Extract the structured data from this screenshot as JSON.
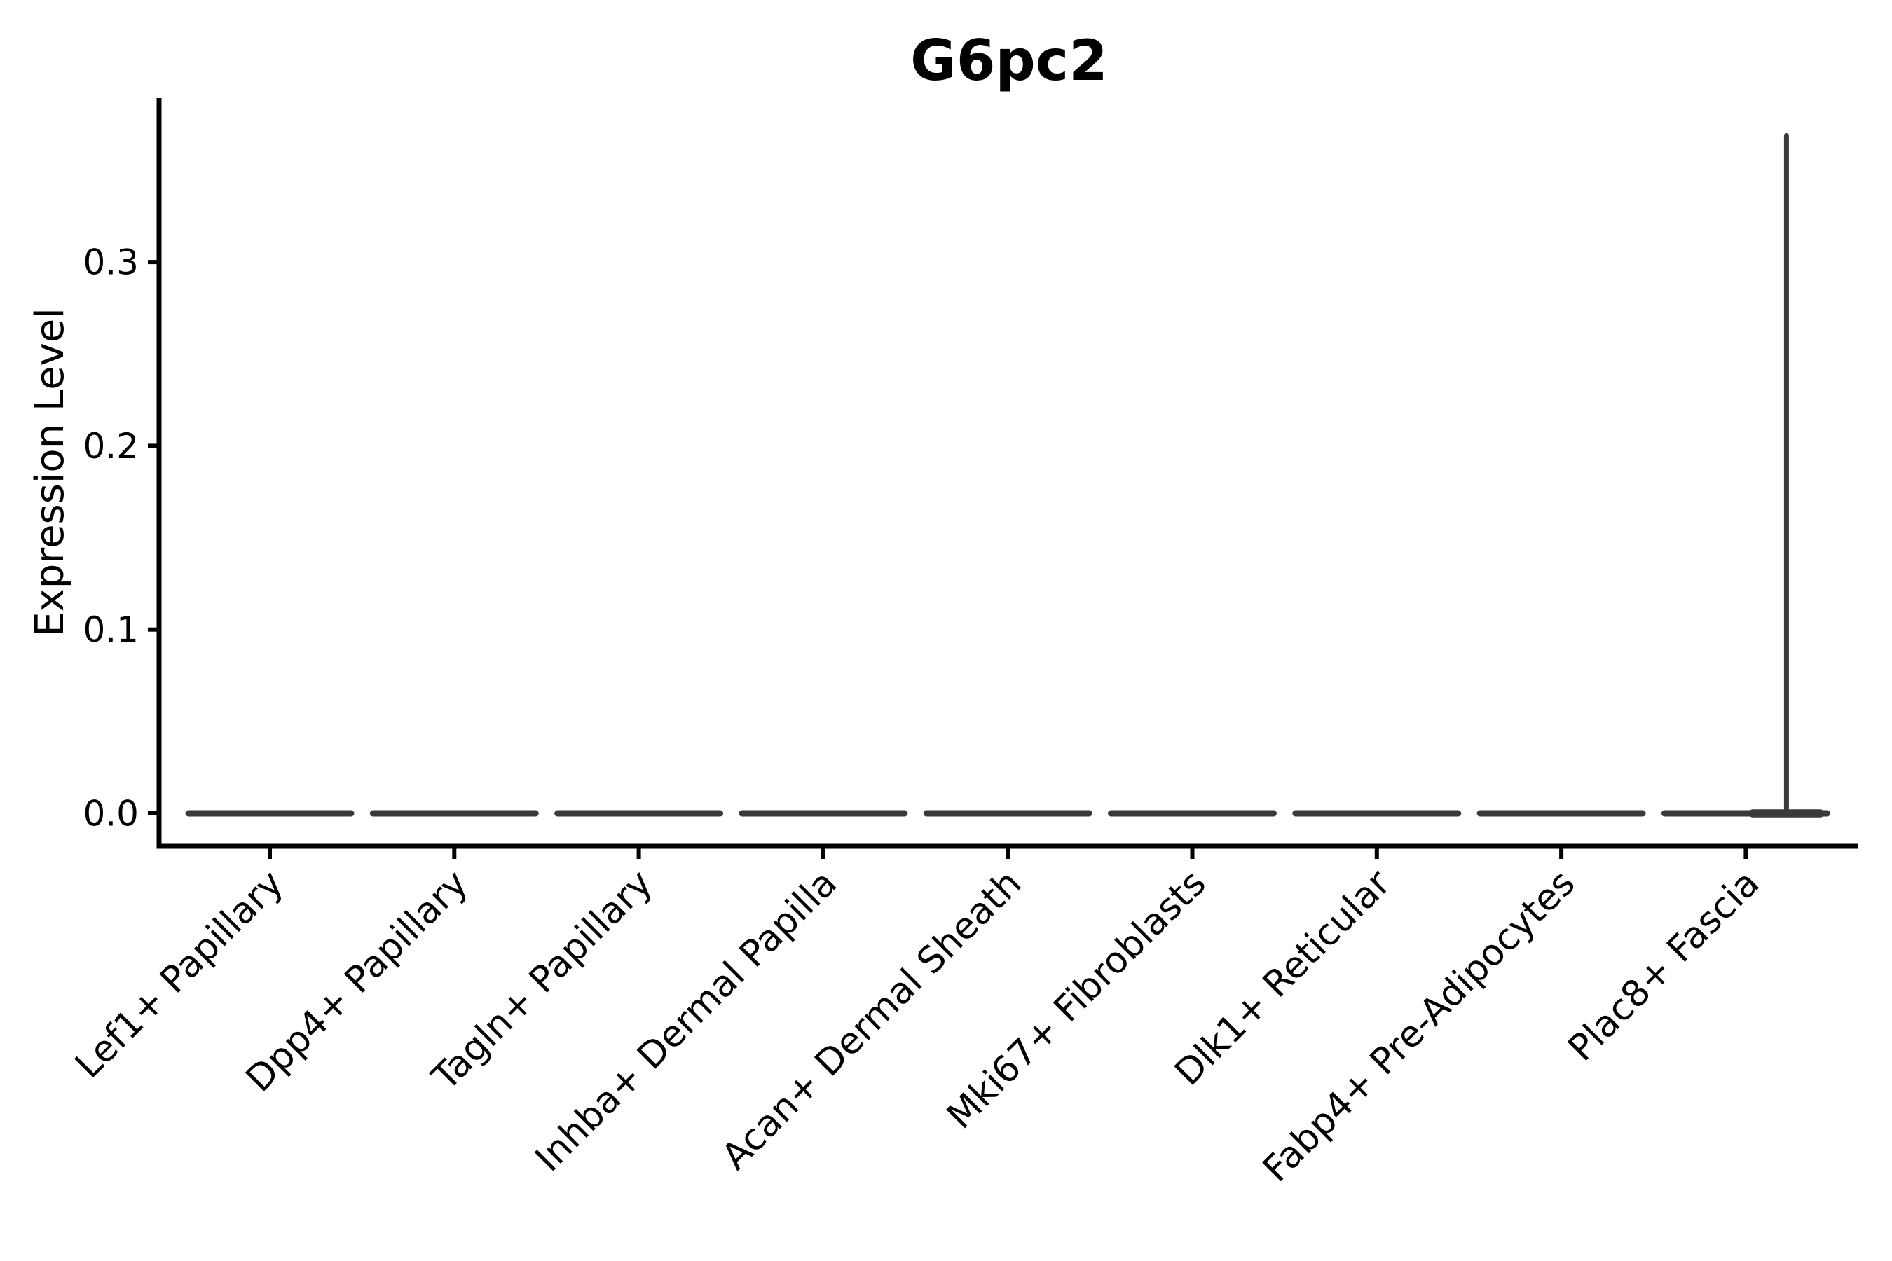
{
  "figure": {
    "title": "G6pc2",
    "y_axis_label": "Expression Level"
  },
  "chart_data": {
    "type": "violin",
    "title": "G6pc2",
    "xlabel": "",
    "ylabel": "Expression Level",
    "categories": [
      "Lef1+ Papillary",
      "Dpp4+ Papillary",
      "Tagln+ Papillary",
      "Inhba+ Dermal Papilla",
      "Acan+ Dermal Sheath",
      "Mki67+ Fibroblasts",
      "Dlk1+ Reticular",
      "Fabp4+ Pre-Adipocytes",
      "Plac8+ Fascia"
    ],
    "violins": [
      {
        "category": "Lef1+ Papillary",
        "expression_min": 0.0,
        "expression_max": 0.0,
        "shape": "flat-at-zero"
      },
      {
        "category": "Dpp4+ Papillary",
        "expression_min": 0.0,
        "expression_max": 0.0,
        "shape": "flat-at-zero"
      },
      {
        "category": "Tagln+ Papillary",
        "expression_min": 0.0,
        "expression_max": 0.0,
        "shape": "flat-at-zero"
      },
      {
        "category": "Inhba+ Dermal Papilla",
        "expression_min": 0.0,
        "expression_max": 0.0,
        "shape": "flat-at-zero"
      },
      {
        "category": "Acan+ Dermal Sheath",
        "expression_min": 0.0,
        "expression_max": 0.0,
        "shape": "flat-at-zero"
      },
      {
        "category": "Mki67+ Fibroblasts",
        "expression_min": 0.0,
        "expression_max": 0.0,
        "shape": "flat-at-zero"
      },
      {
        "category": "Dlk1+ Reticular",
        "expression_min": 0.0,
        "expression_max": 0.0,
        "shape": "flat-at-zero"
      },
      {
        "category": "Fabp4+ Pre-Adipocytes",
        "expression_min": 0.0,
        "expression_max": 0.0,
        "shape": "flat-at-zero"
      },
      {
        "category": "Plac8+ Fascia",
        "expression_min": 0.0,
        "expression_max": 0.37,
        "shape": "flat-at-zero-with-thin-spike"
      }
    ],
    "y_ticks": [
      0.0,
      0.1,
      0.2,
      0.3
    ],
    "ylim": [
      -0.018,
      0.388
    ],
    "grid": false,
    "legend": null,
    "x_tick_rotation_degrees": 45,
    "colors": {
      "violin_fill": "#3A3A3A",
      "axis": "#000000",
      "text": "#000000",
      "background": "#FFFFFF"
    }
  }
}
